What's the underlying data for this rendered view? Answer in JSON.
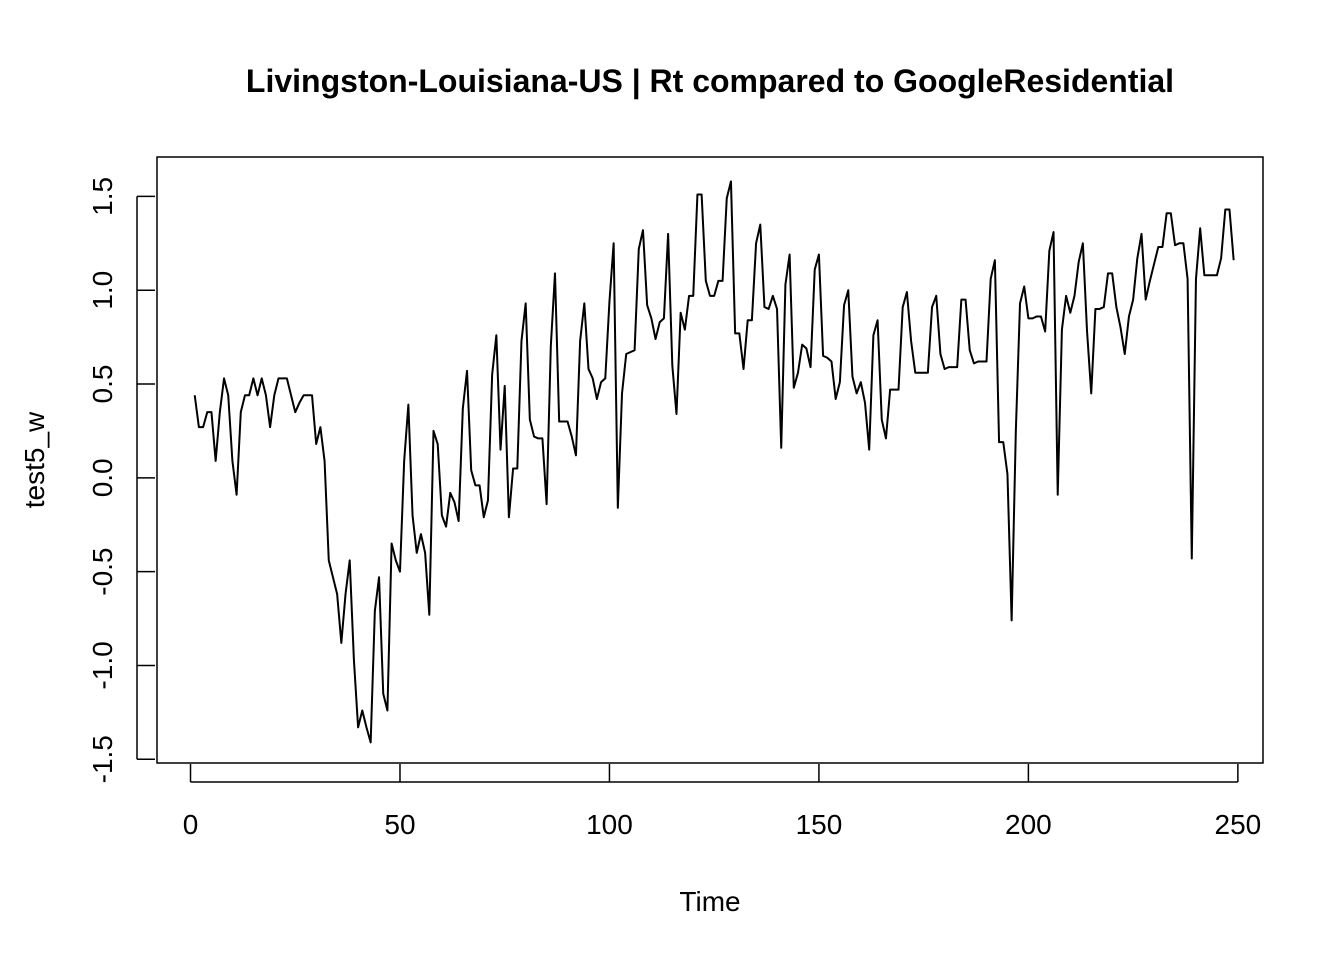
{
  "chart_data": {
    "type": "line",
    "title": "Livingston-Louisiana-US | Rt compared to GoogleResidential",
    "xlabel": "Time",
    "ylabel": "test5_w",
    "xlim": [
      -8,
      256
    ],
    "ylim": [
      -1.52,
      1.71
    ],
    "x_ticks": [
      0,
      50,
      100,
      150,
      200,
      250
    ],
    "y_ticks": [
      -1.5,
      -1.0,
      -0.5,
      0.0,
      0.5,
      1.0,
      1.5
    ],
    "x_tick_labels": [
      "0",
      "50",
      "100",
      "150",
      "200",
      "250"
    ],
    "y_tick_labels": [
      "-1.5",
      "-1.0",
      "-0.5",
      "0.0",
      "0.5",
      "1.0",
      "1.5"
    ],
    "x_start": 1,
    "series": [
      {
        "name": "test5_w",
        "color": "#000000",
        "values": [
          0.44,
          0.27,
          0.27,
          0.35,
          0.35,
          0.09,
          0.35,
          0.53,
          0.44,
          0.09,
          -0.09,
          0.35,
          0.44,
          0.44,
          0.53,
          0.44,
          0.53,
          0.44,
          0.27,
          0.44,
          0.53,
          0.53,
          0.53,
          0.44,
          0.35,
          0.4,
          0.44,
          0.44,
          0.44,
          0.18,
          0.27,
          0.09,
          -0.44,
          -0.53,
          -0.62,
          -0.88,
          -0.62,
          -0.44,
          -0.97,
          -1.33,
          -1.24,
          -1.33,
          -1.41,
          -0.71,
          -0.53,
          -1.15,
          -1.24,
          -0.35,
          -0.44,
          -0.5,
          0.09,
          0.39,
          -0.2,
          -0.4,
          -0.3,
          -0.4,
          -0.73,
          0.25,
          0.18,
          -0.2,
          -0.26,
          -0.08,
          -0.13,
          -0.23,
          0.37,
          0.57,
          0.04,
          -0.04,
          -0.04,
          -0.21,
          -0.12,
          0.55,
          0.76,
          0.15,
          0.49,
          -0.21,
          0.05,
          0.05,
          0.73,
          0.93,
          0.31,
          0.22,
          0.21,
          0.21,
          -0.14,
          0.7,
          1.09,
          0.3,
          0.3,
          0.3,
          0.22,
          0.12,
          0.73,
          0.93,
          0.58,
          0.53,
          0.42,
          0.51,
          0.53,
          0.94,
          1.25,
          -0.16,
          0.45,
          0.66,
          0.67,
          0.68,
          1.22,
          1.32,
          0.92,
          0.85,
          0.74,
          0.83,
          0.85,
          1.3,
          0.6,
          0.34,
          0.88,
          0.79,
          0.97,
          0.97,
          1.51,
          1.51,
          1.05,
          0.97,
          0.97,
          1.05,
          1.05,
          1.49,
          1.58,
          0.77,
          0.77,
          0.58,
          0.84,
          0.84,
          1.25,
          1.35,
          0.91,
          0.9,
          0.97,
          0.9,
          0.16,
          1.03,
          1.19,
          0.48,
          0.56,
          0.71,
          0.69,
          0.59,
          1.11,
          1.19,
          0.65,
          0.64,
          0.62,
          0.42,
          0.51,
          0.92,
          1.0,
          0.54,
          0.45,
          0.51,
          0.4,
          0.15,
          0.76,
          0.84,
          0.31,
          0.21,
          0.47,
          0.47,
          0.47,
          0.91,
          0.99,
          0.73,
          0.56,
          0.56,
          0.56,
          0.56,
          0.91,
          0.97,
          0.66,
          0.58,
          0.59,
          0.59,
          0.59,
          0.95,
          0.95,
          0.68,
          0.61,
          0.62,
          0.62,
          0.62,
          1.06,
          1.16,
          0.19,
          0.19,
          0.02,
          -0.76,
          0.25,
          0.93,
          1.02,
          0.85,
          0.85,
          0.86,
          0.86,
          0.78,
          1.21,
          1.31,
          -0.09,
          0.79,
          0.97,
          0.88,
          0.97,
          1.15,
          1.25,
          0.78,
          0.45,
          0.9,
          0.9,
          0.91,
          1.09,
          1.09,
          0.91,
          0.8,
          0.66,
          0.86,
          0.95,
          1.17,
          1.3,
          0.95,
          1.05,
          1.14,
          1.23,
          1.23,
          1.41,
          1.41,
          1.24,
          1.25,
          1.25,
          1.06,
          -0.43,
          1.06,
          1.33,
          1.08,
          1.08,
          1.08,
          1.08,
          1.17,
          1.43,
          1.43,
          1.16
        ]
      }
    ]
  }
}
